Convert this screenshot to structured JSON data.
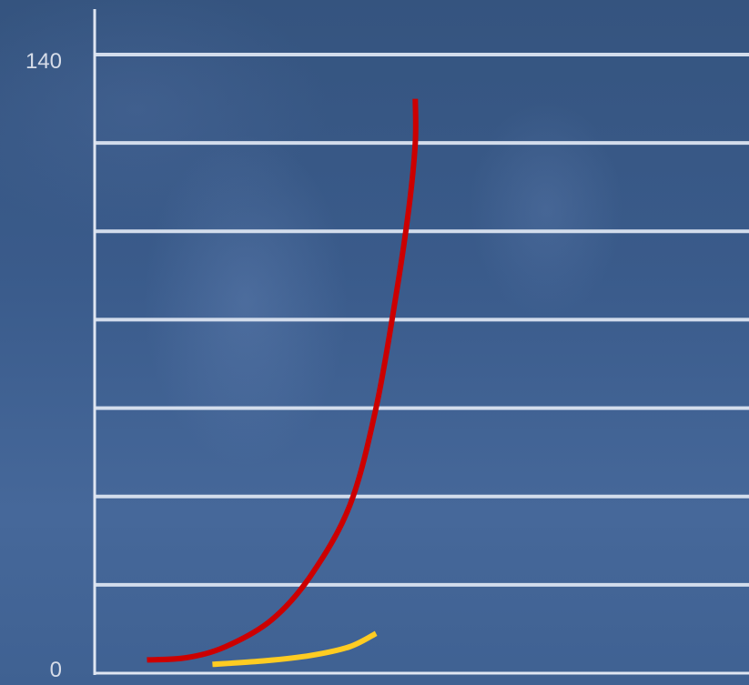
{
  "chart_data": {
    "type": "line",
    "title": "",
    "xlabel": "",
    "ylabel": "",
    "ylim": [
      0,
      140
    ],
    "xlim": [
      0,
      100
    ],
    "y_tick_labels": [
      "0",
      "140"
    ],
    "grid": true,
    "series": [
      {
        "color": "#cc0000",
        "points": [
          [
            8,
            3
          ],
          [
            14,
            3.5
          ],
          [
            20,
            6
          ],
          [
            27,
            12
          ],
          [
            33,
            22
          ],
          [
            39,
            38
          ],
          [
            43,
            60
          ],
          [
            46,
            85
          ],
          [
            48,
            105
          ],
          [
            49,
            120
          ],
          [
            49,
            130
          ]
        ]
      },
      {
        "color": "#ffcc22",
        "points": [
          [
            18,
            2
          ],
          [
            26,
            2.8
          ],
          [
            33,
            4
          ],
          [
            39,
            6
          ],
          [
            43,
            9
          ]
        ]
      }
    ]
  }
}
